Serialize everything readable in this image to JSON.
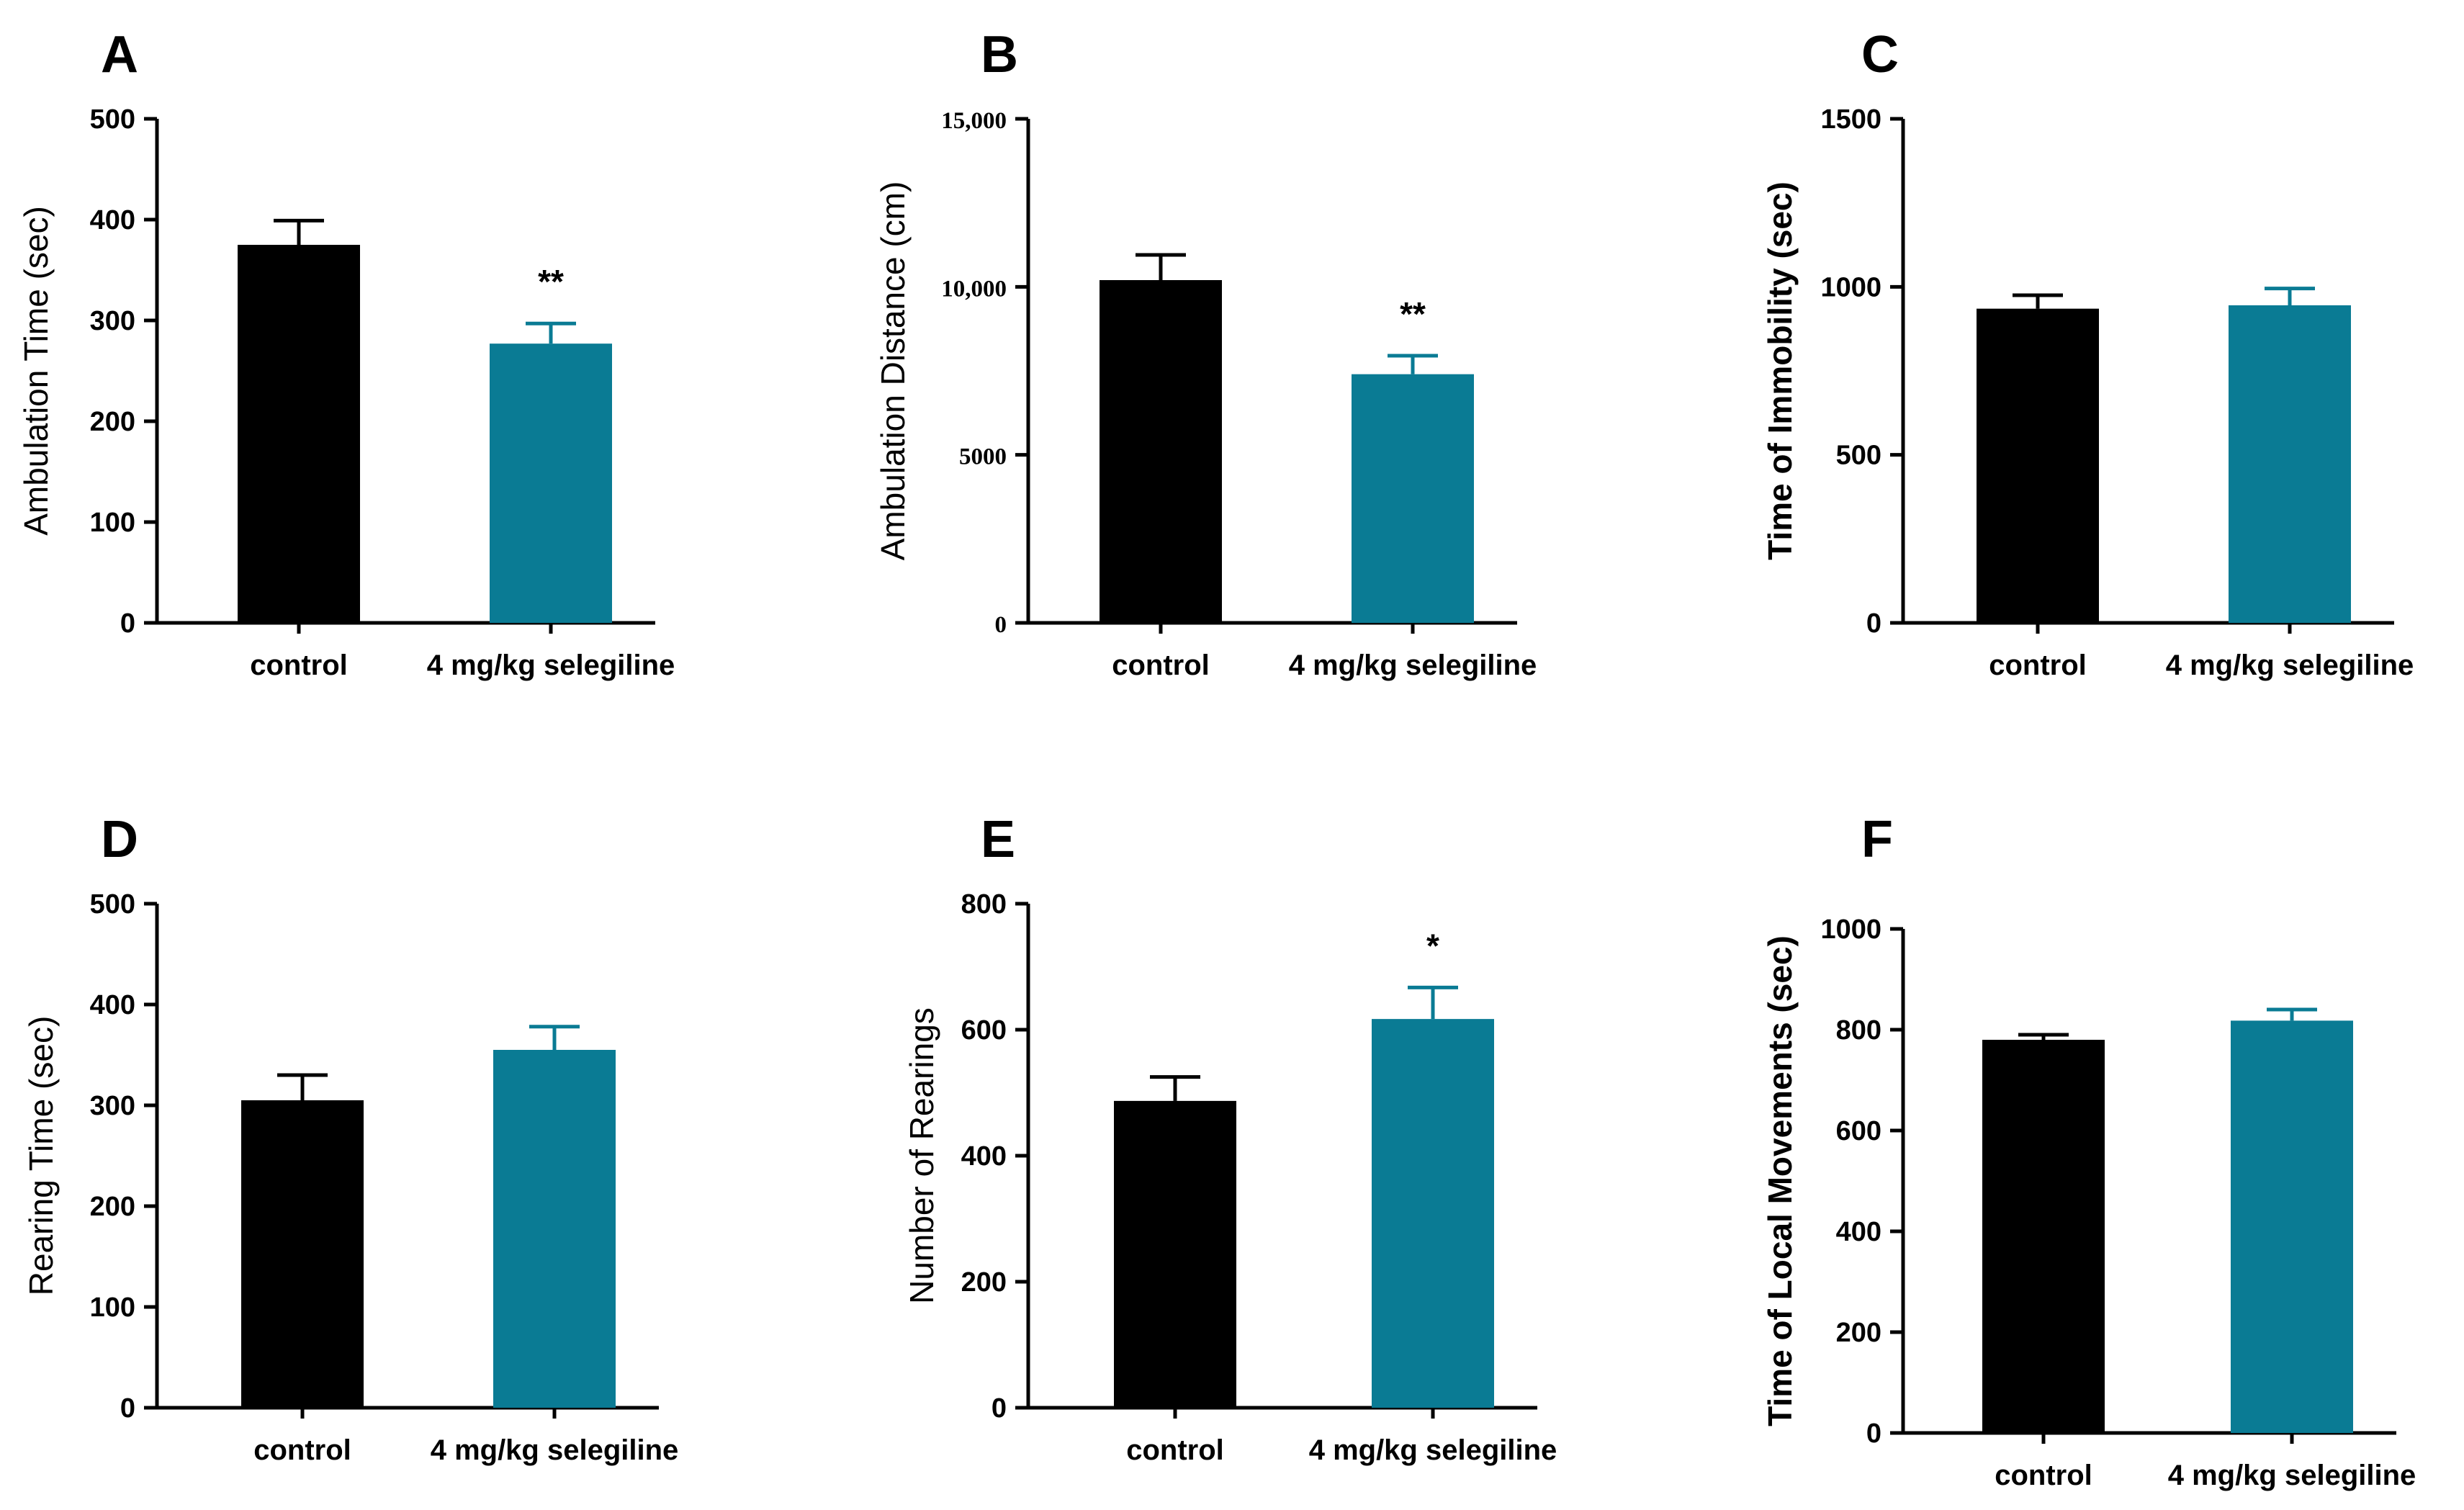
{
  "chart_data": [
    {
      "panel": "A",
      "type": "bar",
      "title": "",
      "xlabel": "",
      "ylabel": "Ambulation Time (sec)",
      "categories": [
        "control",
        "4 mg/kg selegiline"
      ],
      "values": [
        375,
        277
      ],
      "errors": [
        24,
        20
      ],
      "significance": [
        "",
        "**"
      ],
      "ylim": [
        0,
        500
      ],
      "yticks": [
        0,
        100,
        200,
        300,
        400,
        500
      ],
      "ytick_labels": [
        "0",
        "100",
        "200",
        "300",
        "400",
        "500"
      ],
      "colors": [
        "#000000",
        "#0a7b94"
      ]
    },
    {
      "panel": "B",
      "type": "bar",
      "title": "",
      "xlabel": "",
      "ylabel": "Ambulation Distance (cm)",
      "categories": [
        "control",
        "4 mg/kg selegiline"
      ],
      "values": [
        10200,
        7400
      ],
      "errors": [
        750,
        550
      ],
      "significance": [
        "",
        "**"
      ],
      "ylim": [
        0,
        15000
      ],
      "yticks": [
        0,
        5000,
        10000,
        15000
      ],
      "ytick_labels": [
        "0",
        "5000",
        "10,000",
        "15,000"
      ],
      "colors": [
        "#000000",
        "#0a7b94"
      ]
    },
    {
      "panel": "C",
      "type": "bar",
      "title": "",
      "xlabel": "",
      "ylabel": "Time of Immobility (sec)",
      "categories": [
        "control",
        "4 mg/kg selegiline"
      ],
      "values": [
        935,
        945
      ],
      "errors": [
        40,
        50
      ],
      "significance": [
        "",
        ""
      ],
      "ylim": [
        0,
        1500
      ],
      "yticks": [
        0,
        500,
        1000,
        1500
      ],
      "ytick_labels": [
        "0",
        "500",
        "1000",
        "1500"
      ],
      "colors": [
        "#000000",
        "#0a7b94"
      ]
    },
    {
      "panel": "D",
      "type": "bar",
      "title": "",
      "xlabel": "",
      "ylabel": "Rearing Time (sec)",
      "categories": [
        "control",
        "4 mg/kg selegiline"
      ],
      "values": [
        305,
        355
      ],
      "errors": [
        25,
        23
      ],
      "significance": [
        "",
        ""
      ],
      "ylim": [
        0,
        500
      ],
      "yticks": [
        0,
        100,
        200,
        300,
        400,
        500
      ],
      "ytick_labels": [
        "0",
        "100",
        "200",
        "300",
        "400",
        "500"
      ],
      "colors": [
        "#000000",
        "#0a7b94"
      ]
    },
    {
      "panel": "E",
      "type": "bar",
      "title": "",
      "xlabel": "",
      "ylabel": "Number of Rearings",
      "categories": [
        "control",
        "4 mg/kg selegiline"
      ],
      "values": [
        487,
        617
      ],
      "errors": [
        38,
        50
      ],
      "significance": [
        "",
        "*"
      ],
      "ylim": [
        0,
        800
      ],
      "yticks": [
        0,
        200,
        400,
        600,
        800
      ],
      "ytick_labels": [
        "0",
        "200",
        "400",
        "600",
        "800"
      ],
      "colors": [
        "#000000",
        "#0a7b94"
      ]
    },
    {
      "panel": "F",
      "type": "bar",
      "title": "",
      "xlabel": "",
      "ylabel": "Time of Local Movements (sec)",
      "categories": [
        "control",
        "4 mg/kg selegiline"
      ],
      "values": [
        780,
        818
      ],
      "errors": [
        10,
        22
      ],
      "significance": [
        "",
        ""
      ],
      "ylim": [
        0,
        1000
      ],
      "yticks": [
        0,
        200,
        400,
        600,
        800,
        1000
      ],
      "ytick_labels": [
        "0",
        "200",
        "400",
        "600",
        "800",
        "1000"
      ],
      "colors": [
        "#000000",
        "#0a7b94"
      ]
    }
  ]
}
